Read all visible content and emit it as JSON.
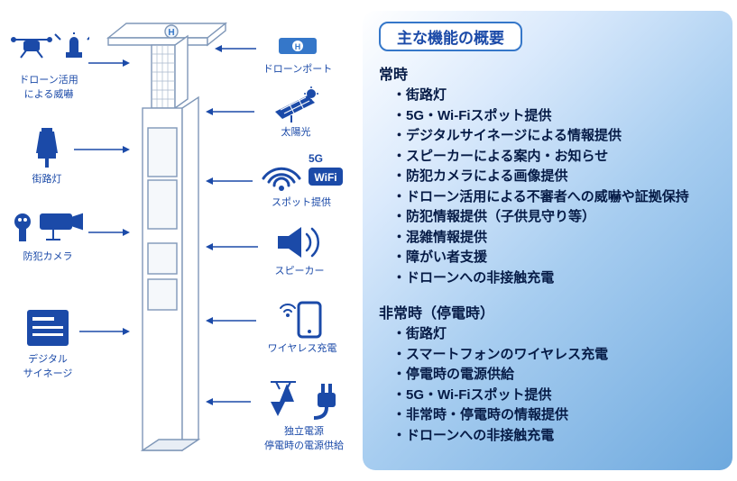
{
  "colors": {
    "accent": "#1b4aa8",
    "line": "#3577c9",
    "pole_fill": "#ffffff",
    "pole_stroke": "#7f97b8",
    "panel_border": "#3577c9",
    "panel_bg_start": "#ffffff",
    "panel_bg_end": "#6ea9de",
    "text_dark": "#061b46"
  },
  "diagram": {
    "left_icons": [
      {
        "key": "drone",
        "label": "ドローン活用\nによる威嚇"
      },
      {
        "key": "lamp",
        "label": "街路灯"
      },
      {
        "key": "camera",
        "label": "防犯カメラ"
      },
      {
        "key": "signage",
        "label": "デジタル\nサイネージ"
      }
    ],
    "right_icons": [
      {
        "key": "droneport",
        "label": "ドローンポート"
      },
      {
        "key": "solar",
        "label": "太陽光"
      },
      {
        "key": "wifi",
        "label": "スポット提供",
        "badges": [
          "5G",
          "WiFi"
        ]
      },
      {
        "key": "speaker",
        "label": "スピーカー"
      },
      {
        "key": "wireless",
        "label": "ワイヤレス充電"
      },
      {
        "key": "power",
        "label": "独立電源\n停電時の電源供給"
      }
    ]
  },
  "panel": {
    "title": "主な機能の概要",
    "sections": [
      {
        "heading": "常時",
        "items": [
          "街路灯",
          "5G・Wi-Fiスポット提供",
          "デジタルサイネージによる情報提供",
          "スピーカーによる案内・お知らせ",
          "防犯カメラによる画像提供",
          "ドローン活用による不審者への威嚇や証拠保持",
          "防犯情報提供（子供見守り等）",
          "混雑情報提供",
          "障がい者支援",
          "ドローンへの非接触充電"
        ]
      },
      {
        "heading": "非常時（停電時）",
        "items": [
          "街路灯",
          "スマートフォンのワイヤレス充電",
          "停電時の電源供給",
          "5G・Wi-Fiスポット提供",
          "非常時・停電時の情報提供",
          "ドローンへの非接触充電"
        ]
      }
    ]
  }
}
